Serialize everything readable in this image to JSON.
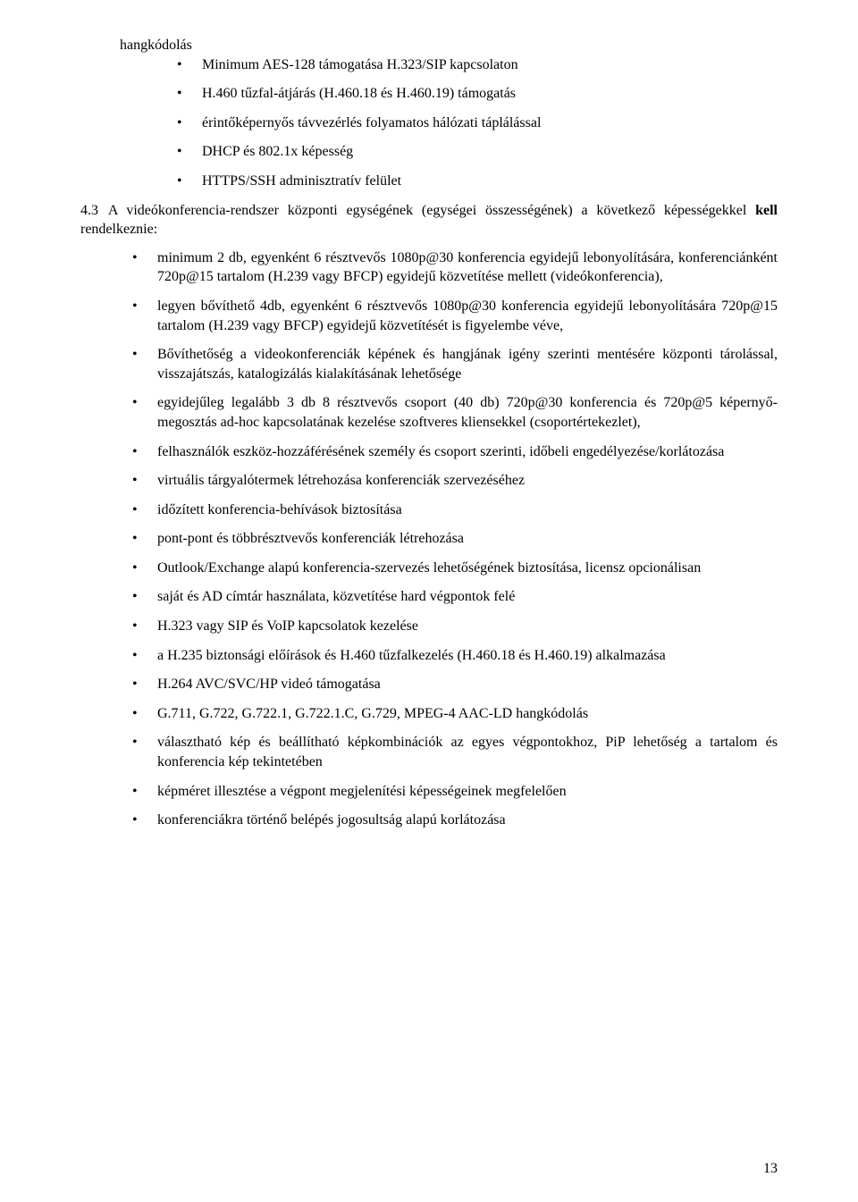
{
  "intro_line": "hangkódolás",
  "top_list": [
    "Minimum AES-128 támogatása H.323/SIP kapcsolaton",
    "H.460 tűzfal-átjárás (H.460.18 és H.460.19) támogatás",
    "érintőképernyős távvezérlés folyamatos hálózati táplálással",
    "DHCP és 802.1x képesség",
    "HTTPS/SSH adminisztratív felület"
  ],
  "section": {
    "number": "4.3",
    "text_before_bold": "A videókonferencia-rendszer központi egységének (egységei összességének) a következő képességekkel ",
    "bold": "kell",
    "text_after_bold": " rendelkeznie:"
  },
  "main_list": [
    "minimum 2 db, egyenként 6 résztvevős 1080p@30 konferencia egyidejű lebonyolítására, konferenciánként 720p@15 tartalom (H.239 vagy BFCP) egyidejű közvetítése mellett (videókonferencia),",
    "legyen bővíthető 4db, egyenként 6 résztvevős 1080p@30 konferencia egyidejű lebonyolítására 720p@15 tartalom (H.239 vagy BFCP) egyidejű közvetítését is figyelembe véve,",
    "Bővíthetőség a videokonferenciák képének és hangjának igény szerinti mentésére központi tárolással, visszajátszás, katalogizálás kialakításának lehetősége",
    "egyidejűleg legalább 3 db 8 résztvevős csoport (40 db) 720p@30 konferencia és 720p@5 képernyő-megosztás ad-hoc kapcsolatának kezelése szoftveres kliensekkel (csoportértekezlet),",
    "felhasználók eszköz-hozzáférésének személy és csoport szerinti, időbeli engedélyezése/korlátozása",
    "virtuális tárgyalótermek létrehozása konferenciák szervezéséhez",
    "időzített konferencia-behívások biztosítása",
    "pont-pont és többrésztvevős konferenciák létrehozása",
    "Outlook/Exchange alapú konferencia-szervezés lehetőségének biztosítása, licensz opcionálisan",
    "saját és AD címtár használata, közvetítése hard végpontok felé",
    "H.323 vagy  SIP és VoIP kapcsolatok kezelése",
    "a H.235 biztonsági előírások és H.460 tűzfalkezelés (H.460.18 és H.460.19) alkalmazása",
    "H.264 AVC/SVC/HP videó támogatása",
    "G.711, G.722, G.722.1, G.722.1.C, G.729, MPEG-4 AAC-LD hangkódolás",
    "választható kép és beállítható képkombinációk az egyes végpontokhoz, PiP lehetőség a tartalom és konferencia kép tekintetében",
    "képméret illesztése a végpont megjelenítési képességeinek megfelelően",
    "konferenciákra történő belépés jogosultság alapú korlátozása"
  ],
  "page_number": "13"
}
